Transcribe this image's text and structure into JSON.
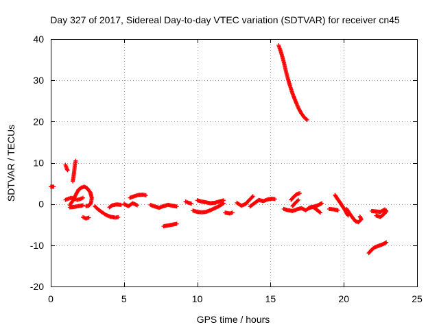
{
  "chart_data": {
    "type": "scatter",
    "title": "Day 327 of 2017, Sidereal Day-to-day VTEC variation (SDTVAR) for receiver cn45",
    "xlabel": "GPS time / hours",
    "ylabel": "SDTVAR / TECUs",
    "xlim": [
      0,
      25
    ],
    "ylim": [
      -20,
      40
    ],
    "xticks": [
      0,
      5,
      10,
      15,
      20,
      25
    ],
    "yticks": [
      -20,
      -10,
      0,
      10,
      20,
      30,
      40
    ],
    "grid": true,
    "legend": "none",
    "marker": "+",
    "series": [
      {
        "name": "SDTVAR",
        "color": "#ff0000",
        "segments": [
          [
            [
              0.0,
              4.2
            ],
            [
              0.1,
              4.2
            ],
            [
              0.2,
              4.2
            ]
          ],
          [
            [
              1.0,
              9.5
            ],
            [
              1.05,
              9.0
            ],
            [
              1.1,
              8.5
            ],
            [
              1.15,
              8.2
            ]
          ],
          [
            [
              1.5,
              5.5
            ],
            [
              1.55,
              6.5
            ],
            [
              1.6,
              8.0
            ],
            [
              1.65,
              9.5
            ],
            [
              1.7,
              10.5
            ]
          ],
          [
            [
              1.0,
              1.0
            ],
            [
              1.2,
              1.3
            ],
            [
              1.4,
              1.5
            ],
            [
              1.6,
              1.3
            ],
            [
              1.8,
              1.0
            ],
            [
              2.0,
              1.2
            ],
            [
              2.2,
              1.5
            ]
          ],
          [
            [
              1.3,
              -0.3
            ],
            [
              1.5,
              0.8
            ],
            [
              1.7,
              2.2
            ],
            [
              1.9,
              3.5
            ],
            [
              2.1,
              4.0
            ],
            [
              2.3,
              4.2
            ],
            [
              2.5,
              3.8
            ],
            [
              2.7,
              2.8
            ],
            [
              2.8,
              1.5
            ],
            [
              2.75,
              0.3
            ],
            [
              2.6,
              -0.4
            ],
            [
              2.4,
              -0.5
            ]
          ],
          [
            [
              1.3,
              -0.8
            ],
            [
              1.6,
              -0.7
            ],
            [
              1.9,
              -0.5
            ],
            [
              2.2,
              -0.3
            ]
          ],
          [
            [
              2.2,
              -3.2
            ],
            [
              2.4,
              -3.5
            ],
            [
              2.6,
              -3.3
            ]
          ],
          [
            [
              3.0,
              -0.5
            ],
            [
              3.2,
              -1.2
            ],
            [
              3.5,
              -2.0
            ],
            [
              3.8,
              -2.7
            ],
            [
              4.1,
              -3.1
            ],
            [
              4.4,
              -3.3
            ],
            [
              4.6,
              -3.2
            ]
          ],
          [
            [
              4.0,
              -0.8
            ],
            [
              4.2,
              -0.3
            ],
            [
              4.5,
              -0.1
            ],
            [
              4.8,
              -0.2
            ]
          ],
          [
            [
              5.0,
              0.0
            ],
            [
              5.3,
              -0.5
            ],
            [
              5.6,
              0.2
            ],
            [
              5.9,
              -0.3
            ]
          ],
          [
            [
              5.4,
              1.5
            ],
            [
              5.7,
              1.9
            ],
            [
              6.0,
              2.2
            ],
            [
              6.3,
              2.3
            ],
            [
              6.5,
              2.1
            ]
          ],
          [
            [
              6.8,
              -0.2
            ],
            [
              7.1,
              -0.6
            ],
            [
              7.4,
              -0.9
            ],
            [
              7.7,
              -0.5
            ],
            [
              8.0,
              -0.2
            ],
            [
              8.3,
              -0.4
            ],
            [
              8.6,
              -0.6
            ]
          ],
          [
            [
              7.7,
              -5.4
            ],
            [
              8.0,
              -5.2
            ],
            [
              8.3,
              -5.0
            ],
            [
              8.6,
              -4.8
            ]
          ],
          [
            [
              9.2,
              0.6
            ],
            [
              9.4,
              0.3
            ],
            [
              9.6,
              0.1
            ]
          ],
          [
            [
              9.7,
              -1.6
            ],
            [
              10.0,
              -1.9
            ],
            [
              10.3,
              -2.0
            ],
            [
              10.6,
              -1.9
            ],
            [
              10.9,
              -1.5
            ],
            [
              11.2,
              -1.0
            ],
            [
              11.5,
              -0.5
            ],
            [
              11.8,
              0.2
            ]
          ],
          [
            [
              10.0,
              0.9
            ],
            [
              10.3,
              0.6
            ],
            [
              10.6,
              0.4
            ],
            [
              10.9,
              0.2
            ],
            [
              11.2,
              0.3
            ],
            [
              11.5,
              0.6
            ],
            [
              11.8,
              0.9
            ]
          ],
          [
            [
              11.9,
              -2.1
            ],
            [
              12.2,
              -2.3
            ],
            [
              12.4,
              -2.1
            ]
          ],
          [
            [
              12.7,
              0.3
            ],
            [
              13.0,
              -0.4
            ],
            [
              13.3,
              0.0
            ],
            [
              13.5,
              0.8
            ],
            [
              13.7,
              1.5
            ],
            [
              13.8,
              1.9
            ]
          ],
          [
            [
              13.6,
              -0.6
            ],
            [
              13.9,
              0.2
            ],
            [
              14.2,
              1.0
            ],
            [
              14.5,
              0.7
            ],
            [
              14.8,
              1.1
            ],
            [
              15.1,
              1.3
            ],
            [
              15.3,
              1.2
            ]
          ],
          [
            [
              15.55,
              38.5
            ],
            [
              15.7,
              37.0
            ],
            [
              15.9,
              34.5
            ],
            [
              16.1,
              31.5
            ],
            [
              16.3,
              29.0
            ],
            [
              16.5,
              26.8
            ],
            [
              16.7,
              25.0
            ],
            [
              16.9,
              23.3
            ],
            [
              17.1,
              22.0
            ],
            [
              17.3,
              21.0
            ],
            [
              17.5,
              20.4
            ]
          ],
          [
            [
              15.9,
              -1.2
            ],
            [
              16.2,
              -1.5
            ],
            [
              16.5,
              -1.7
            ],
            [
              16.8,
              -1.3
            ],
            [
              17.1,
              -1.0
            ],
            [
              17.4,
              -1.5
            ],
            [
              17.7,
              -0.8
            ],
            [
              18.0,
              -0.6
            ],
            [
              18.3,
              -0.2
            ],
            [
              18.5,
              0.2
            ]
          ],
          [
            [
              16.4,
              1.0
            ],
            [
              16.6,
              1.8
            ],
            [
              16.8,
              2.4
            ],
            [
              17.0,
              2.6
            ]
          ],
          [
            [
              16.5,
              -0.5
            ],
            [
              16.7,
              0.3
            ],
            [
              16.9,
              1.0
            ]
          ],
          [
            [
              17.6,
              -1.0
            ],
            [
              17.9,
              -0.7
            ],
            [
              18.2,
              -1.5
            ],
            [
              18.4,
              -2.1
            ]
          ],
          [
            [
              19.0,
              -1.2
            ],
            [
              19.3,
              -1.3
            ],
            [
              19.6,
              -1.5
            ]
          ],
          [
            [
              19.4,
              2.2
            ],
            [
              19.5,
              1.6
            ],
            [
              19.6,
              1.1
            ],
            [
              19.7,
              0.6
            ],
            [
              19.8,
              0.1
            ],
            [
              19.9,
              -0.5
            ],
            [
              20.0,
              -1.0
            ],
            [
              20.1,
              -1.6
            ],
            [
              20.2,
              -2.3
            ],
            [
              20.3,
              -2.8
            ]
          ],
          [
            [
              20.2,
              -1.2
            ],
            [
              20.4,
              -2.3
            ],
            [
              20.6,
              -3.3
            ],
            [
              20.8,
              -4.2
            ],
            [
              21.0,
              -4.4
            ],
            [
              21.2,
              -3.7
            ],
            [
              21.1,
              -3.0
            ]
          ],
          [
            [
              21.7,
              -11.9
            ],
            [
              21.9,
              -11.1
            ],
            [
              22.1,
              -10.5
            ],
            [
              22.4,
              -10.1
            ],
            [
              22.7,
              -9.7
            ],
            [
              22.9,
              -9.3
            ]
          ],
          [
            [
              21.9,
              -1.7
            ],
            [
              22.2,
              -1.8
            ],
            [
              22.5,
              -1.9
            ],
            [
              22.8,
              -1.3
            ],
            [
              22.9,
              -1.9
            ]
          ],
          [
            [
              22.2,
              -2.8
            ],
            [
              22.5,
              -3.1
            ],
            [
              22.7,
              -2.6
            ],
            [
              22.9,
              -1.6
            ]
          ]
        ]
      }
    ]
  }
}
